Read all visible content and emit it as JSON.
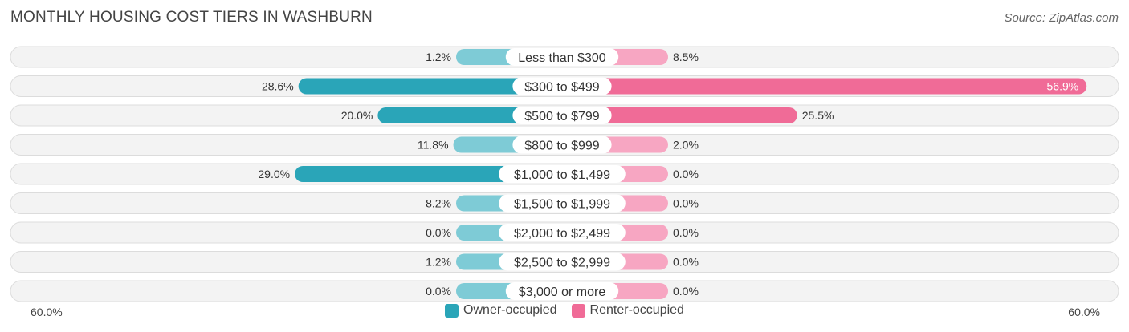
{
  "title": "MONTHLY HOUSING COST TIERS IN WASHBURN",
  "source": "Source: ZipAtlas.com",
  "colors": {
    "owner_strong": "#2aa5b8",
    "owner_light": "#7ecbd6",
    "renter_strong": "#f06b97",
    "renter_light": "#f7a6c2"
  },
  "legend": {
    "owner": "Owner-occupied",
    "renter": "Renter-occupied"
  },
  "axis": {
    "left_label": "60.0%",
    "right_label": "60.0%"
  },
  "chart_data": {
    "type": "bar",
    "orientation": "horizontal-diverging",
    "categories": [
      "Less than $300",
      "$300 to $499",
      "$500 to $799",
      "$800 to $999",
      "$1,000 to $1,499",
      "$1,500 to $1,999",
      "$2,000 to $2,499",
      "$2,500 to $2,999",
      "$3,000 or more"
    ],
    "series": [
      {
        "name": "Owner-occupied",
        "values": [
          1.2,
          28.6,
          20.0,
          11.8,
          29.0,
          8.2,
          0.0,
          1.2,
          0.0
        ],
        "labels": [
          "1.2%",
          "28.6%",
          "20.0%",
          "11.8%",
          "29.0%",
          "8.2%",
          "0.0%",
          "1.2%",
          "0.0%"
        ]
      },
      {
        "name": "Renter-occupied",
        "values": [
          8.5,
          56.9,
          25.5,
          2.0,
          0.0,
          0.0,
          0.0,
          0.0,
          0.0
        ],
        "labels": [
          "8.5%",
          "56.9%",
          "25.5%",
          "2.0%",
          "0.0%",
          "0.0%",
          "0.0%",
          "0.0%",
          "0.0%"
        ]
      }
    ],
    "xlim": [
      -60,
      60
    ],
    "legend_position": "bottom-center"
  }
}
